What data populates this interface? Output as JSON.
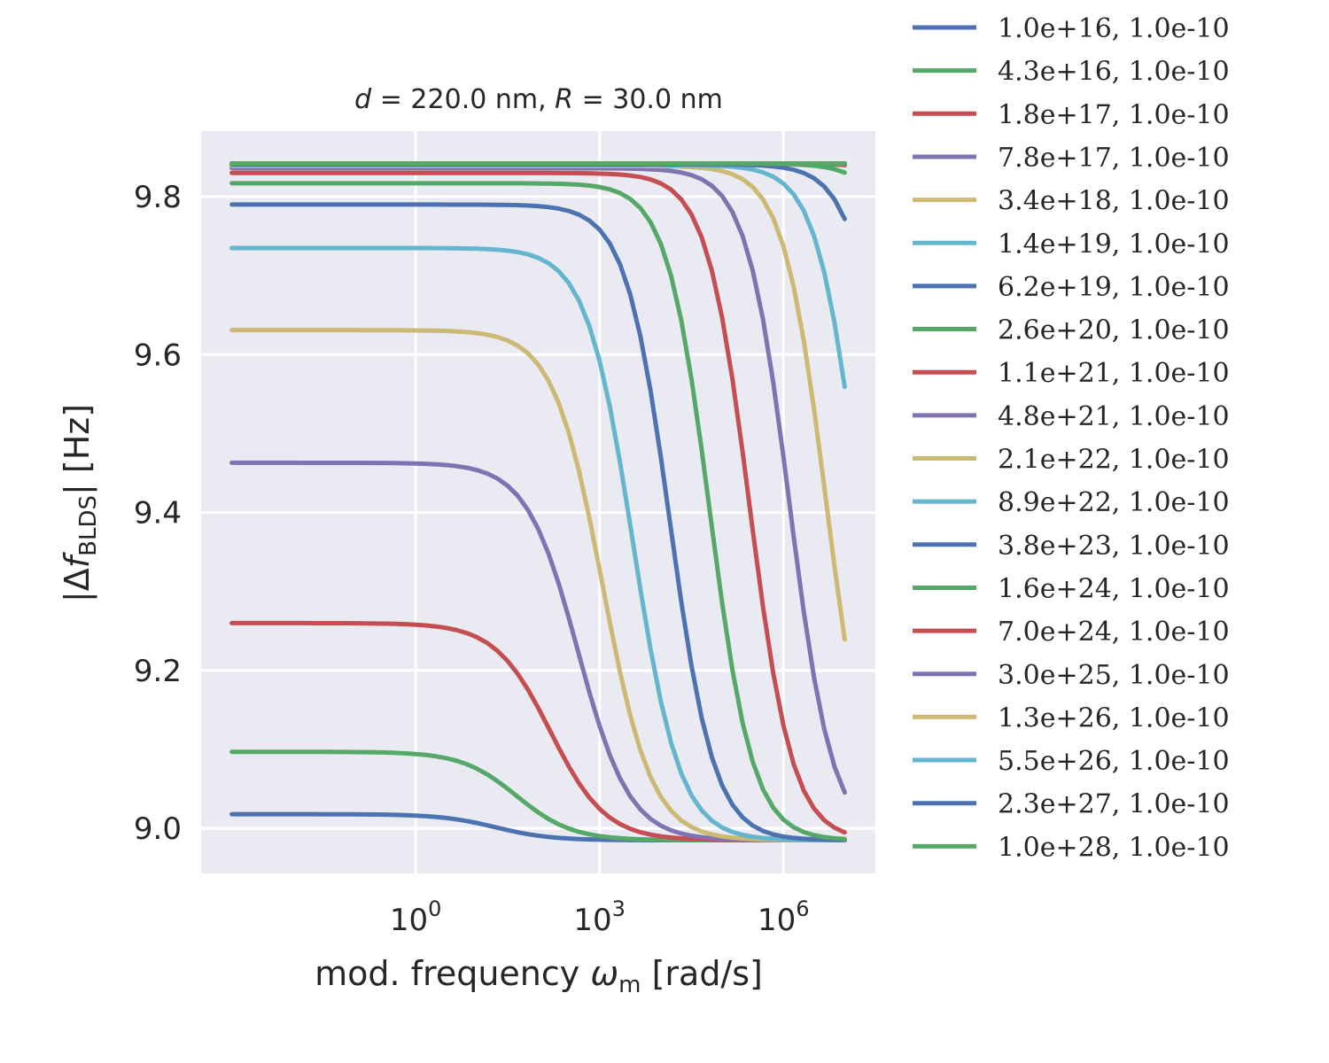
{
  "chart_data": {
    "type": "line",
    "title": {
      "d_symbol": "d",
      "d_value": " =  220.0 nm, ",
      "r_symbol": "R",
      "r_value": " =  30.0 nm"
    },
    "xlabel": {
      "prefix": "mod. frequency ",
      "symbol": "ω",
      "sub": "m",
      "suffix": " [rad/s]"
    },
    "ylabel": {
      "prefix": "|Δ",
      "symbol": "f",
      "sub": "BLDS",
      "suffix": "| [Hz]"
    },
    "xscale": "log",
    "xlim_log10": [
      -3.5,
      7.5
    ],
    "ylim": [
      8.943,
      9.883
    ],
    "x_log10_range": [
      -3,
      7
    ],
    "y_ticks": [
      9.0,
      9.2,
      9.4,
      9.6,
      9.8
    ],
    "y_tick_labels": [
      "9.0",
      "9.2",
      "9.4",
      "9.6",
      "9.8"
    ],
    "x_ticks_log10": [
      0,
      3,
      6
    ],
    "x_tick_base": "10",
    "x_tick_exponents": [
      "0",
      "3",
      "6"
    ],
    "grid": true,
    "background": "#eaeaf2",
    "legend_position": "outside-right",
    "series": [
      {
        "name": "1.0e+16, 1.0e-10",
        "color": "#4c72b0",
        "y_low": 9.018,
        "y_high": 8.985,
        "log10_mid": 1.3,
        "width": 0.45
      },
      {
        "name": "4.3e+16, 1.0e-10",
        "color": "#55a868",
        "y_low": 9.097,
        "y_high": 8.985,
        "log10_mid": 1.65,
        "width": 0.45
      },
      {
        "name": "1.8e+17, 1.0e-10",
        "color": "#c44e52",
        "y_low": 9.26,
        "y_high": 8.985,
        "log10_mid": 2.2,
        "width": 0.45
      },
      {
        "name": "7.8e+17, 1.0e-10",
        "color": "#8172b2",
        "y_low": 9.463,
        "y_high": 8.985,
        "log10_mid": 2.65,
        "width": 0.42
      },
      {
        "name": "3.4e+18, 1.0e-10",
        "color": "#ccb974",
        "y_low": 9.631,
        "y_high": 8.985,
        "log10_mid": 3.05,
        "width": 0.4
      },
      {
        "name": "1.4e+19, 1.0e-10",
        "color": "#64b5cd",
        "y_low": 9.735,
        "y_high": 8.985,
        "log10_mid": 3.55,
        "width": 0.38
      },
      {
        "name": "6.2e+19, 1.0e-10",
        "color": "#4c72b0",
        "y_low": 9.79,
        "y_high": 8.985,
        "log10_mid": 4.15,
        "width": 0.36
      },
      {
        "name": "2.6e+20, 1.0e-10",
        "color": "#55a868",
        "y_low": 9.817,
        "y_high": 8.985,
        "log10_mid": 4.8,
        "width": 0.35
      },
      {
        "name": "1.1e+21, 1.0e-10",
        "color": "#c44e52",
        "y_low": 9.83,
        "y_high": 8.985,
        "log10_mid": 5.45,
        "width": 0.35
      },
      {
        "name": "4.8e+21, 1.0e-10",
        "color": "#8172b2",
        "y_low": 9.836,
        "y_high": 8.985,
        "log10_mid": 6.1,
        "width": 0.35
      },
      {
        "name": "2.1e+22, 1.0e-10",
        "color": "#ccb974",
        "y_low": 9.839,
        "y_high": 8.985,
        "log10_mid": 6.7,
        "width": 0.35
      },
      {
        "name": "8.9e+22, 1.0e-10",
        "color": "#64b5cd",
        "y_low": 9.84,
        "y_high": 8.985,
        "log10_mid": 7.25,
        "width": 0.35
      },
      {
        "name": "3.8e+23, 1.0e-10",
        "color": "#4c72b0",
        "y_low": 9.841,
        "y_high": 8.985,
        "log10_mid": 7.85,
        "width": 0.35
      },
      {
        "name": "1.6e+24, 1.0e-10",
        "color": "#55a868",
        "y_low": 9.842,
        "y_high": 8.985,
        "log10_mid": 8.5,
        "width": 0.35
      },
      {
        "name": "7.0e+24, 1.0e-10",
        "color": "#c44e52",
        "y_low": 9.842,
        "y_high": 8.985,
        "log10_mid": 9.1,
        "width": 0.35
      },
      {
        "name": "3.0e+25, 1.0e-10",
        "color": "#8172b2",
        "y_low": 9.842,
        "y_high": 8.985,
        "log10_mid": 9.7,
        "width": 0.35
      },
      {
        "name": "1.3e+26, 1.0e-10",
        "color": "#ccb974",
        "y_low": 9.842,
        "y_high": 8.985,
        "log10_mid": 10.3,
        "width": 0.35
      },
      {
        "name": "5.5e+26, 1.0e-10",
        "color": "#64b5cd",
        "y_low": 9.842,
        "y_high": 8.985,
        "log10_mid": 10.9,
        "width": 0.35
      },
      {
        "name": "2.3e+27, 1.0e-10",
        "color": "#4c72b0",
        "y_low": 9.842,
        "y_high": 8.985,
        "log10_mid": 11.5,
        "width": 0.35
      },
      {
        "name": "1.0e+28, 1.0e-10",
        "color": "#55a868",
        "y_low": 9.842,
        "y_high": 8.985,
        "log10_mid": 12.1,
        "width": 0.35
      }
    ]
  }
}
